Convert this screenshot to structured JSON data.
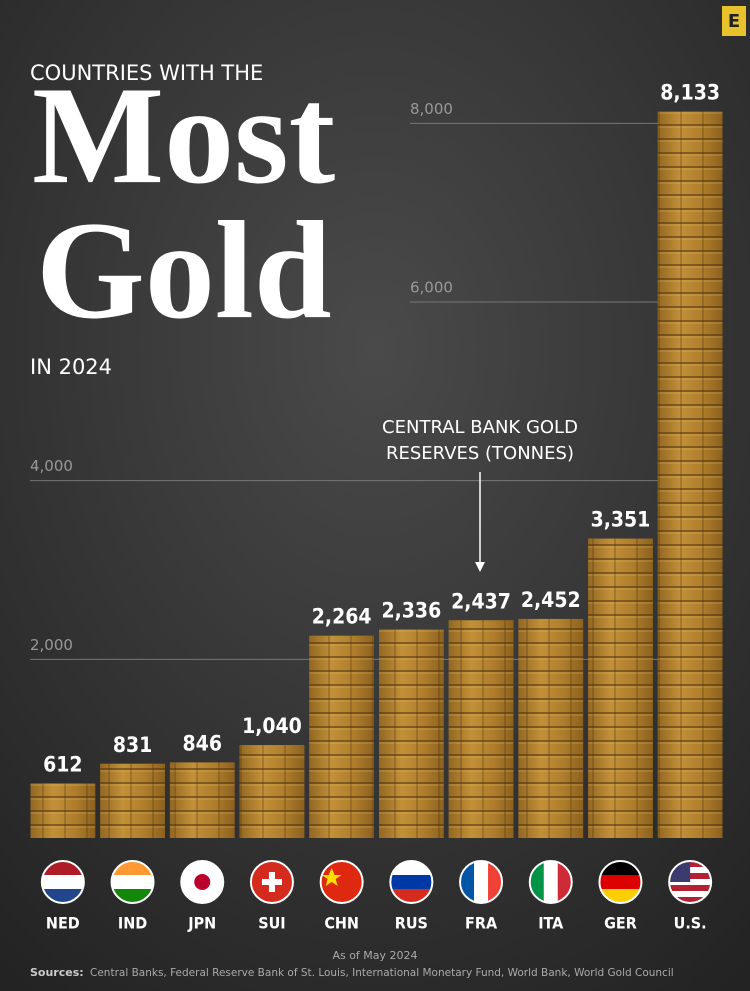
{
  "chart_data": {
    "type": "bar",
    "kicker": "COUNTRIES WITH THE",
    "title_lines": [
      "Most",
      "Gold"
    ],
    "subtitle": "IN 2024",
    "annotation_lines": [
      "CENTRAL BANK GOLD",
      "RESERVES (TONNES)"
    ],
    "categories": [
      "NED",
      "IND",
      "JPN",
      "SUI",
      "CHN",
      "RUS",
      "FRA",
      "ITA",
      "GER",
      "U.S."
    ],
    "values": [
      612,
      831,
      846,
      1040,
      2264,
      2336,
      2437,
      2452,
      3351,
      8133
    ],
    "value_labels": [
      "612",
      "831",
      "846",
      "1,040",
      "2,264",
      "2,336",
      "2,437",
      "2,452",
      "3,351",
      "8,133"
    ],
    "color": "#b8862e",
    "ylim": [
      0,
      9000
    ],
    "yticks": [
      {
        "value": 2000,
        "label": "2,000"
      },
      {
        "value": 4000,
        "label": "4,000"
      },
      {
        "value": 6000,
        "label": "6,000"
      },
      {
        "value": 8000,
        "label": "8,000"
      }
    ],
    "grid": true,
    "note": "As of May 2024",
    "sources_label": "Sources:",
    "sources": "Central Banks, Federal Reserve Bank of St. Louis, International Monetary Fund, World Bank, World Gold Council",
    "logo": "E"
  }
}
